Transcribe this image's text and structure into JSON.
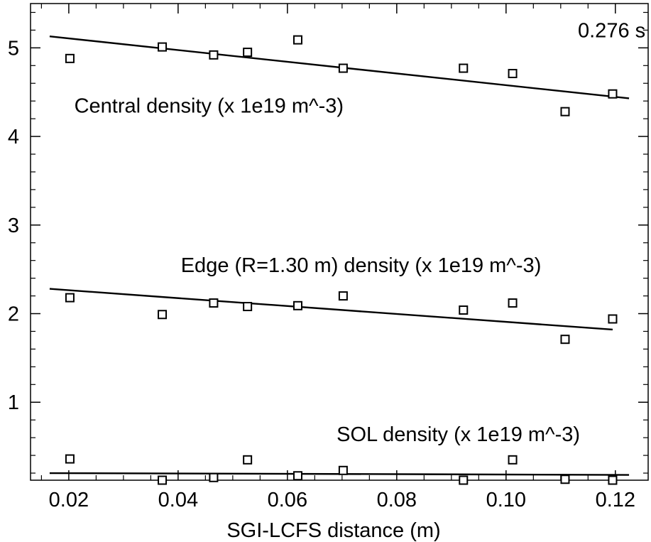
{
  "chart_data": {
    "type": "scatter",
    "xlabel": "SGI-LCFS distance (m)",
    "ylabel": "",
    "xlim": [
      0.013,
      0.126
    ],
    "ylim": [
      0.12,
      5.5
    ],
    "xticks": [
      0.02,
      0.04,
      0.06,
      0.08,
      0.1,
      0.12
    ],
    "xtick_labels": [
      "0.02",
      "0.04",
      "0.06",
      "0.08",
      "0.10",
      "0.12"
    ],
    "yticks": [
      1,
      2,
      3,
      4,
      5
    ],
    "ytick_labels": [
      "1",
      "2",
      "3",
      "4",
      "5"
    ],
    "grid": false,
    "annotations": [
      {
        "text": "0.276 s",
        "x": 0.1255,
        "y": 5.12,
        "anchor": "end"
      },
      {
        "text": "Central density (x 1e19 m^-3)",
        "x": 0.021,
        "y": 4.27,
        "anchor": "start"
      },
      {
        "text": "Edge (R=1.30 m) density (x 1e19 m^-3)",
        "x": 0.0405,
        "y": 2.47,
        "anchor": "start"
      },
      {
        "text": "SOL density (x 1e19 m^-3)",
        "x": 0.069,
        "y": 0.56,
        "anchor": "start"
      }
    ],
    "series": [
      {
        "marker": "square",
        "x": [
          0.0202,
          0.0371,
          0.0465,
          0.0527,
          0.0619,
          0.0702,
          0.0922,
          0.1012,
          0.1108,
          0.1195
        ],
        "y": [
          4.88,
          5.01,
          4.92,
          4.95,
          5.09,
          4.77,
          4.77,
          4.71,
          4.28,
          4.48
        ],
        "fit": {
          "x": [
            0.0165,
            0.1225
          ],
          "y": [
            5.13,
            4.43
          ]
        }
      },
      {
        "marker": "square",
        "x": [
          0.0202,
          0.0371,
          0.0465,
          0.0527,
          0.0619,
          0.0702,
          0.0922,
          0.1012,
          0.1108,
          0.1195
        ],
        "y": [
          2.18,
          1.99,
          2.12,
          2.08,
          2.09,
          2.2,
          2.04,
          2.12,
          1.71,
          1.94
        ],
        "fit": {
          "x": [
            0.0165,
            0.1195
          ],
          "y": [
            2.28,
            1.82
          ]
        }
      },
      {
        "marker": "square",
        "x": [
          0.0202,
          0.0371,
          0.0465,
          0.0527,
          0.0619,
          0.0702,
          0.0922,
          0.1012,
          0.1108,
          0.1195
        ],
        "y": [
          0.36,
          0.12,
          0.15,
          0.35,
          0.17,
          0.23,
          0.12,
          0.35,
          0.13,
          0.12
        ],
        "fit": {
          "x": [
            0.0165,
            0.1225
          ],
          "y": [
            0.2,
            0.18
          ]
        }
      }
    ]
  }
}
